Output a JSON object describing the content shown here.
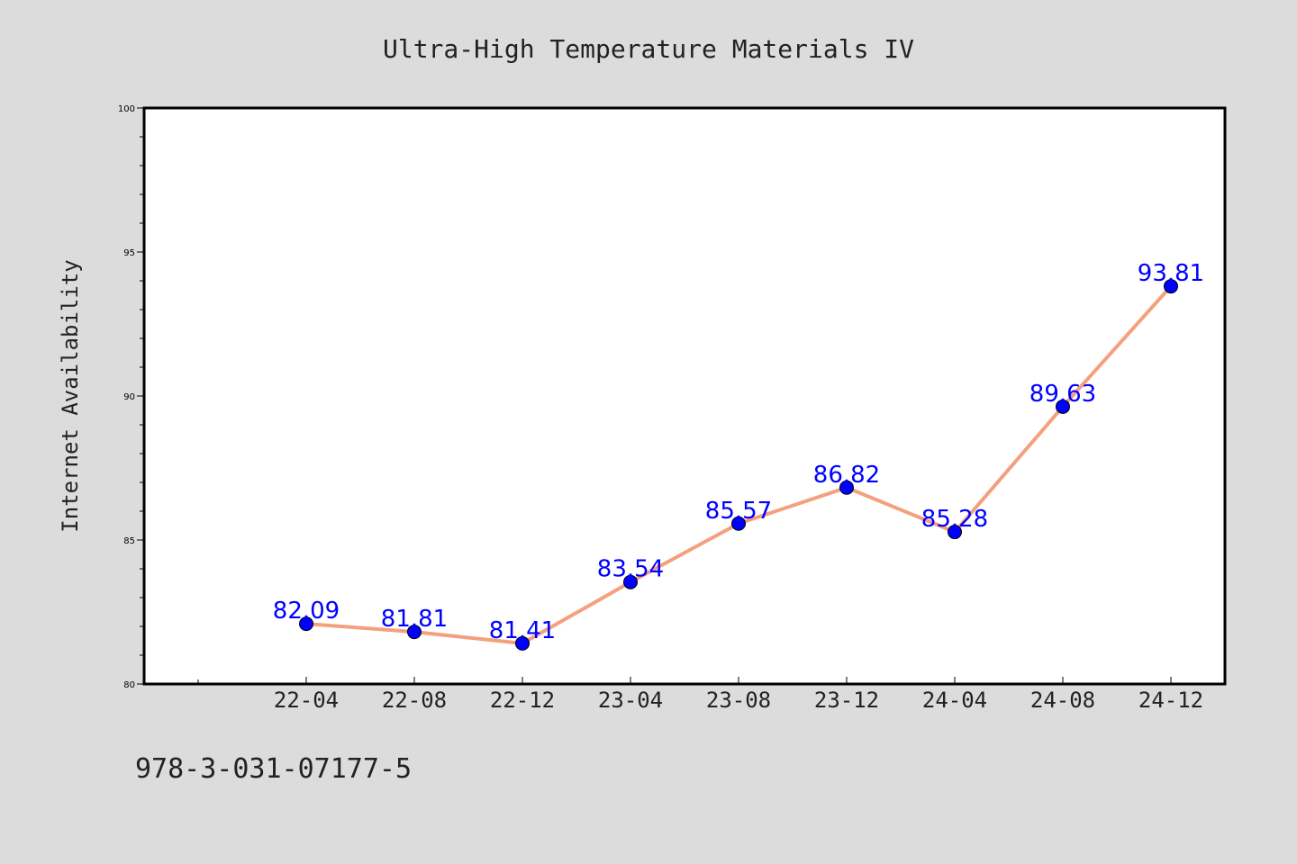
{
  "chart_data": {
    "type": "line",
    "title": "Ultra-High Temperature Materials IV",
    "xlabel": "",
    "ylabel": "Internet Availability",
    "footer_text": "978-3-031-07177-5",
    "categories": [
      "22-04",
      "22-08",
      "22-12",
      "23-04",
      "23-08",
      "23-12",
      "24-04",
      "24-08",
      "24-12"
    ],
    "series": [
      {
        "values": [
          82.09,
          81.81,
          81.41,
          83.54,
          85.57,
          86.82,
          85.28,
          89.63,
          93.81
        ],
        "labels": [
          "82.09",
          "81.81",
          "81.41",
          "83.54",
          "85.57",
          "86.82",
          "85.28",
          "89.63",
          "93.81"
        ]
      }
    ],
    "ylim": [
      80,
      100
    ],
    "yticks": [
      "80",
      "85",
      "90",
      "95",
      "100"
    ],
    "grid": false,
    "legend": "none",
    "colors": {
      "background": "#dcdcdc",
      "plot_background": "#ffffff",
      "line": "#f4a07e",
      "marker": "#0000ff",
      "data_label": "#0000ff",
      "text": "#222222"
    }
  }
}
